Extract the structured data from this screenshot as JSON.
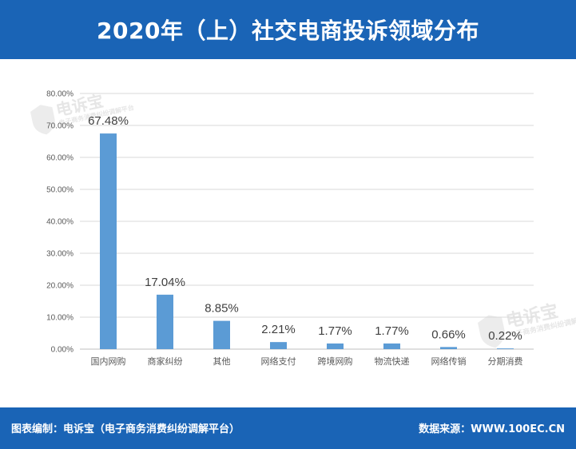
{
  "header": {
    "title": "2020年（上）社交电商投诉领域分布"
  },
  "footer": {
    "left_text": "图表编制：电诉宝（电子商务消费纠纷调解平台）",
    "right_text": "数据来源：WWW.100EC.CN"
  },
  "watermark": {
    "logo_text": "电诉宝",
    "sub_text": "电子商务消费纠纷调解平台"
  },
  "colors": {
    "header_bg": "#1a64b6",
    "bar": "#5b9bd5"
  },
  "chart_data": {
    "type": "bar",
    "categories": [
      "国内网购",
      "商家纠纷",
      "其他",
      "网络支付",
      "跨境网购",
      "物流快递",
      "网络传销",
      "分期消费"
    ],
    "values": [
      67.48,
      17.04,
      8.85,
      2.21,
      1.77,
      1.77,
      0.66,
      0.22
    ],
    "value_labels": [
      "67.48%",
      "17.04%",
      "8.85%",
      "2.21%",
      "1.77%",
      "1.77%",
      "0.66%",
      "0.22%"
    ],
    "yticks": [
      "0.00%",
      "10.00%",
      "20.00%",
      "30.00%",
      "40.00%",
      "50.00%",
      "60.00%",
      "70.00%",
      "80.00%"
    ],
    "ylim": [
      0,
      80
    ],
    "grid": true,
    "legend": "none"
  }
}
